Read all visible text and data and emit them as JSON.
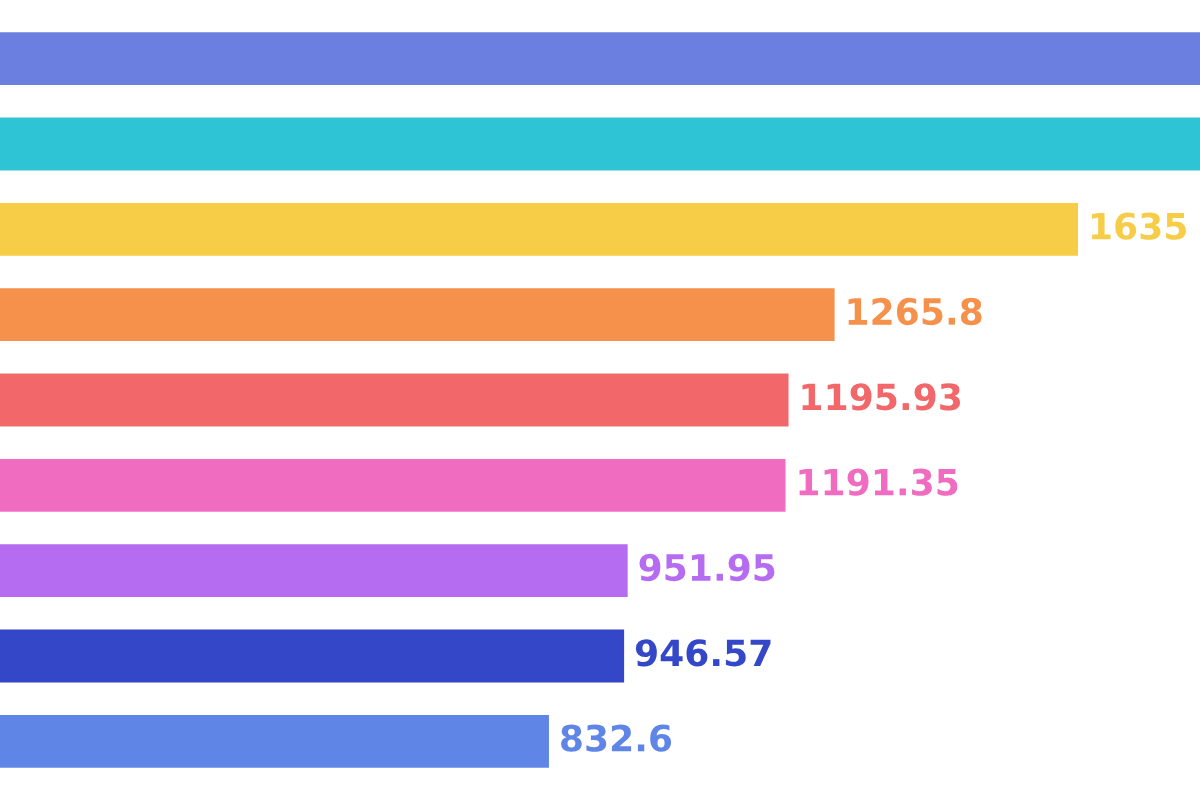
{
  "chart_data": {
    "type": "bar",
    "orientation": "horizontal",
    "categories": [
      null,
      null,
      null,
      null,
      null,
      null,
      null,
      null,
      null
    ],
    "values": [
      1820,
      1820,
      1635,
      1265.8,
      1195.93,
      1191.35,
      951.95,
      946.57,
      832.6
    ],
    "colors": [
      "#6b7fe0",
      "#2ec4d6",
      "#f7cc47",
      "#f5914a",
      "#f2686a",
      "#f06cc0",
      "#b56cf0",
      "#3347c8",
      "#5f86e6"
    ],
    "value_labels": [
      null,
      null,
      "1635",
      "1265.8",
      "1195.93",
      "1191.35",
      "951.95",
      "946.57",
      "832.6"
    ],
    "xlim": [
      0,
      1820
    ],
    "tick_labels": false,
    "grid": false,
    "legend": false
  }
}
